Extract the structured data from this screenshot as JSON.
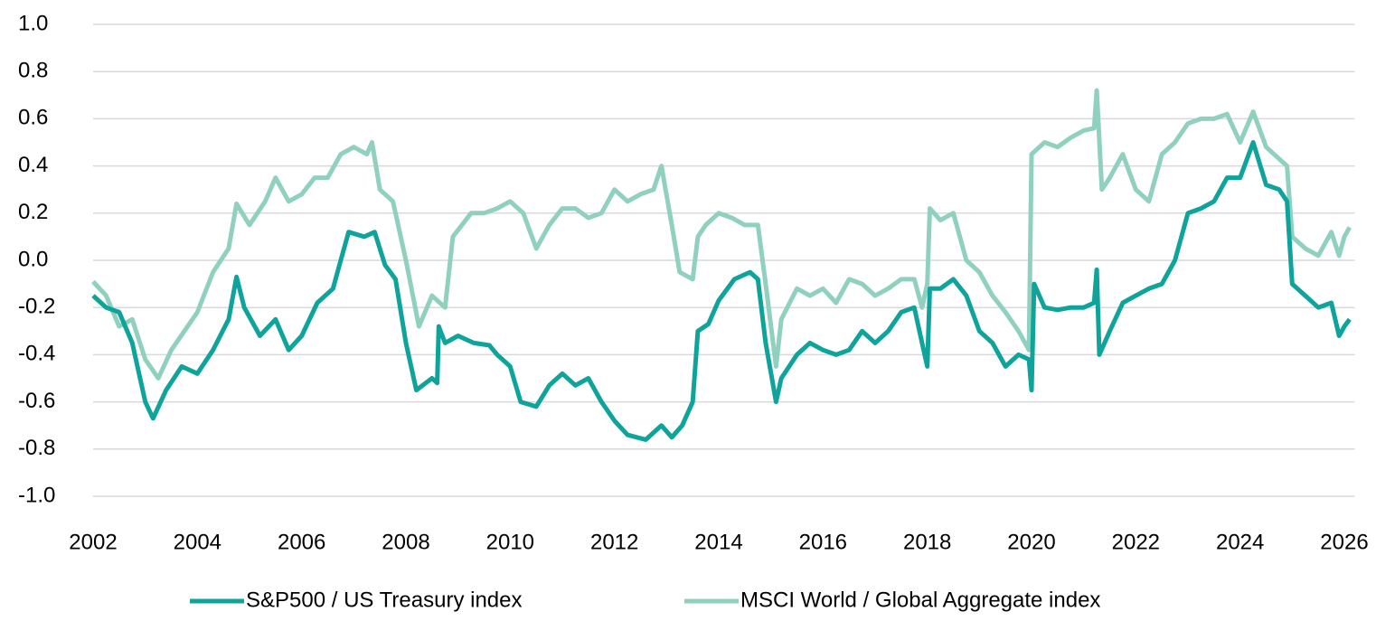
{
  "chart_data": {
    "type": "line",
    "xlim": [
      2002,
      2026.2
    ],
    "xticks": [
      2002,
      2004,
      2006,
      2008,
      2010,
      2012,
      2014,
      2016,
      2018,
      2020,
      2022,
      2024,
      2026
    ],
    "ylim": [
      -1,
      1
    ],
    "yticks": [
      {
        "value": 1,
        "label": "1.0"
      },
      0.8,
      0.6,
      0.4,
      0.2,
      {
        "value": 0,
        "label": "0.0"
      },
      -0.2,
      -0.4,
      -0.6,
      -0.8,
      {
        "value": -1,
        "label": "-1.0"
      }
    ],
    "grid": true,
    "legend": "bottom",
    "series": [
      {
        "name": "S&P500 / US Treasury index",
        "color": "#0ea39b",
        "x": [
          2002.0,
          2002.25,
          2002.5,
          2002.75,
          2003.0,
          2003.15,
          2003.4,
          2003.7,
          2004.0,
          2004.3,
          2004.6,
          2004.75,
          2004.9,
          2005.2,
          2005.5,
          2005.75,
          2006.0,
          2006.3,
          2006.6,
          2006.75,
          2006.9,
          2007.2,
          2007.4,
          2007.6,
          2007.8,
          2008.0,
          2008.2,
          2008.5,
          2008.6,
          2008.63,
          2008.75,
          2009.0,
          2009.3,
          2009.6,
          2009.75,
          2010.0,
          2010.2,
          2010.5,
          2010.75,
          2011.0,
          2011.25,
          2011.5,
          2011.75,
          2012.0,
          2012.25,
          2012.6,
          2012.9,
          2013.1,
          2013.3,
          2013.5,
          2013.6,
          2013.8,
          2014.0,
          2014.3,
          2014.6,
          2014.75,
          2014.9,
          2015.1,
          2015.2,
          2015.5,
          2015.75,
          2016.0,
          2016.25,
          2016.5,
          2016.75,
          2017.0,
          2017.25,
          2017.5,
          2017.75,
          2017.9,
          2018.0,
          2018.05,
          2018.25,
          2018.5,
          2018.75,
          2019.0,
          2019.25,
          2019.5,
          2019.75,
          2019.95,
          2020.0,
          2020.05,
          2020.25,
          2020.5,
          2020.75,
          2021.0,
          2021.2,
          2021.25,
          2021.3,
          2021.5,
          2021.75,
          2022.0,
          2022.25,
          2022.5,
          2022.75,
          2023.0,
          2023.25,
          2023.5,
          2023.75,
          2024.0,
          2024.25,
          2024.5,
          2024.75,
          2024.9,
          2025.0,
          2025.25,
          2025.5,
          2025.75,
          2025.9,
          2026.0,
          2026.1
        ],
        "values": [
          -0.15,
          -0.2,
          -0.22,
          -0.35,
          -0.6,
          -0.67,
          -0.55,
          -0.45,
          -0.48,
          -0.38,
          -0.25,
          -0.07,
          -0.2,
          -0.32,
          -0.25,
          -0.38,
          -0.32,
          -0.18,
          -0.12,
          0.0,
          0.12,
          0.1,
          0.12,
          -0.02,
          -0.08,
          -0.35,
          -0.55,
          -0.5,
          -0.52,
          -0.28,
          -0.35,
          -0.32,
          -0.35,
          -0.36,
          -0.4,
          -0.45,
          -0.6,
          -0.62,
          -0.53,
          -0.48,
          -0.53,
          -0.5,
          -0.6,
          -0.68,
          -0.74,
          -0.76,
          -0.7,
          -0.75,
          -0.7,
          -0.6,
          -0.3,
          -0.27,
          -0.17,
          -0.08,
          -0.05,
          -0.08,
          -0.35,
          -0.6,
          -0.5,
          -0.4,
          -0.35,
          -0.38,
          -0.4,
          -0.38,
          -0.3,
          -0.35,
          -0.3,
          -0.22,
          -0.2,
          -0.35,
          -0.45,
          -0.12,
          -0.12,
          -0.08,
          -0.15,
          -0.3,
          -0.35,
          -0.45,
          -0.4,
          -0.42,
          -0.55,
          -0.1,
          -0.2,
          -0.21,
          -0.2,
          -0.2,
          -0.18,
          -0.04,
          -0.4,
          -0.3,
          -0.18,
          -0.15,
          -0.12,
          -0.1,
          0.0,
          0.2,
          0.22,
          0.25,
          0.35,
          0.35,
          0.5,
          0.32,
          0.3,
          0.25,
          -0.1,
          -0.15,
          -0.2,
          -0.18,
          -0.32,
          -0.28,
          -0.25
        ]
      },
      {
        "name": "MSCI World / Global Aggregate index",
        "color": "#8fd0be",
        "x": [
          2002.0,
          2002.25,
          2002.5,
          2002.75,
          2003.0,
          2003.25,
          2003.5,
          2003.75,
          2004.0,
          2004.3,
          2004.6,
          2004.75,
          2005.0,
          2005.3,
          2005.5,
          2005.75,
          2006.0,
          2006.25,
          2006.5,
          2006.75,
          2007.0,
          2007.25,
          2007.35,
          2007.5,
          2007.75,
          2008.0,
          2008.25,
          2008.5,
          2008.75,
          2008.9,
          2009.25,
          2009.5,
          2009.75,
          2010.0,
          2010.25,
          2010.5,
          2010.75,
          2011.0,
          2011.25,
          2011.5,
          2011.75,
          2012.0,
          2012.25,
          2012.5,
          2012.75,
          2012.9,
          2013.1,
          2013.25,
          2013.5,
          2013.6,
          2013.75,
          2014.0,
          2014.25,
          2014.5,
          2014.75,
          2014.9,
          2015.1,
          2015.2,
          2015.5,
          2015.75,
          2016.0,
          2016.25,
          2016.5,
          2016.75,
          2017.0,
          2017.25,
          2017.5,
          2017.75,
          2017.9,
          2018.0,
          2018.05,
          2018.25,
          2018.5,
          2018.75,
          2019.0,
          2019.25,
          2019.5,
          2019.75,
          2019.95,
          2020.0,
          2020.25,
          2020.5,
          2020.75,
          2021.0,
          2021.2,
          2021.25,
          2021.35,
          2021.5,
          2021.75,
          2022.0,
          2022.25,
          2022.5,
          2022.75,
          2023.0,
          2023.25,
          2023.5,
          2023.75,
          2024.0,
          2024.25,
          2024.5,
          2024.75,
          2024.9,
          2025.0,
          2025.25,
          2025.5,
          2025.75,
          2025.9,
          2026.0,
          2026.1
        ],
        "values": [
          -0.09,
          -0.15,
          -0.28,
          -0.25,
          -0.42,
          -0.5,
          -0.38,
          -0.3,
          -0.22,
          -0.05,
          0.05,
          0.24,
          0.15,
          0.25,
          0.35,
          0.25,
          0.28,
          0.35,
          0.35,
          0.45,
          0.48,
          0.45,
          0.5,
          0.3,
          0.25,
          0.0,
          -0.28,
          -0.15,
          -0.2,
          0.1,
          0.2,
          0.2,
          0.22,
          0.25,
          0.2,
          0.05,
          0.15,
          0.22,
          0.22,
          0.18,
          0.2,
          0.3,
          0.25,
          0.28,
          0.3,
          0.4,
          0.15,
          -0.05,
          -0.08,
          0.1,
          0.15,
          0.2,
          0.18,
          0.15,
          0.15,
          -0.1,
          -0.45,
          -0.25,
          -0.12,
          -0.15,
          -0.12,
          -0.18,
          -0.08,
          -0.1,
          -0.15,
          -0.12,
          -0.08,
          -0.08,
          -0.2,
          -0.1,
          0.22,
          0.17,
          0.2,
          0.0,
          -0.05,
          -0.15,
          -0.22,
          -0.3,
          -0.38,
          0.45,
          0.5,
          0.48,
          0.52,
          0.55,
          0.56,
          0.72,
          0.3,
          0.35,
          0.45,
          0.3,
          0.25,
          0.45,
          0.5,
          0.58,
          0.6,
          0.6,
          0.62,
          0.5,
          0.63,
          0.48,
          0.43,
          0.4,
          0.1,
          0.05,
          0.02,
          0.12,
          0.02,
          0.1,
          0.14
        ]
      }
    ]
  }
}
